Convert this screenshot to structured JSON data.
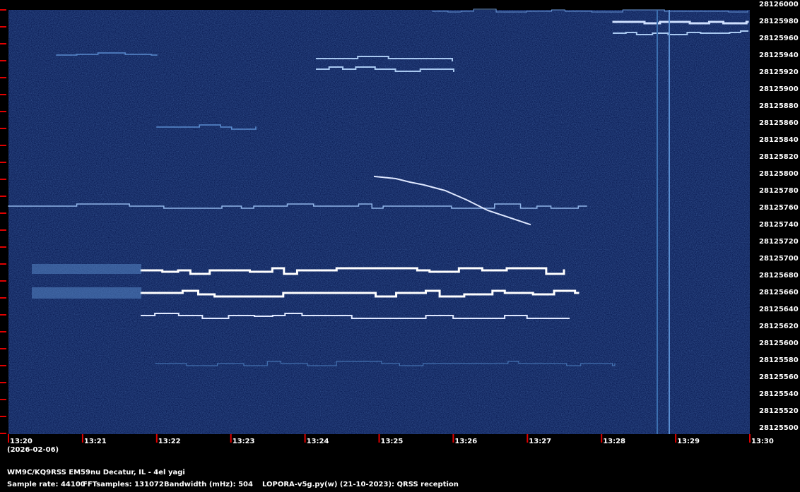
{
  "chart_data": {
    "type": "spectrogram",
    "ylim": [
      28125500,
      28126000
    ],
    "yticks": [
      28126000,
      28125980,
      28125960,
      28125940,
      28125920,
      28125900,
      28125880,
      28125860,
      28125840,
      28125820,
      28125800,
      28125780,
      28125760,
      28125740,
      28125720,
      28125700,
      28125680,
      28125660,
      28125640,
      28125620,
      28125600,
      28125580,
      28125560,
      28125540,
      28125520,
      28125500
    ],
    "xticks": [
      "13:20",
      "13:21",
      "13:22",
      "13:23",
      "13:24",
      "13:25",
      "13:26",
      "13:27",
      "13:28",
      "13:29",
      "13:30"
    ],
    "date": "(2026-02-06)",
    "station": "WM9C/KQ9RSS EM59nu Decatur, IL - 4el yagi",
    "sample_rate": "Sample rate: 44100",
    "fft_samples": "FFTsamples: 131072",
    "bandwidth": "Bandwidth (mHz): 504",
    "software": "LOPORA-v5g.py(w) (21-10-2023): QRSS reception"
  }
}
